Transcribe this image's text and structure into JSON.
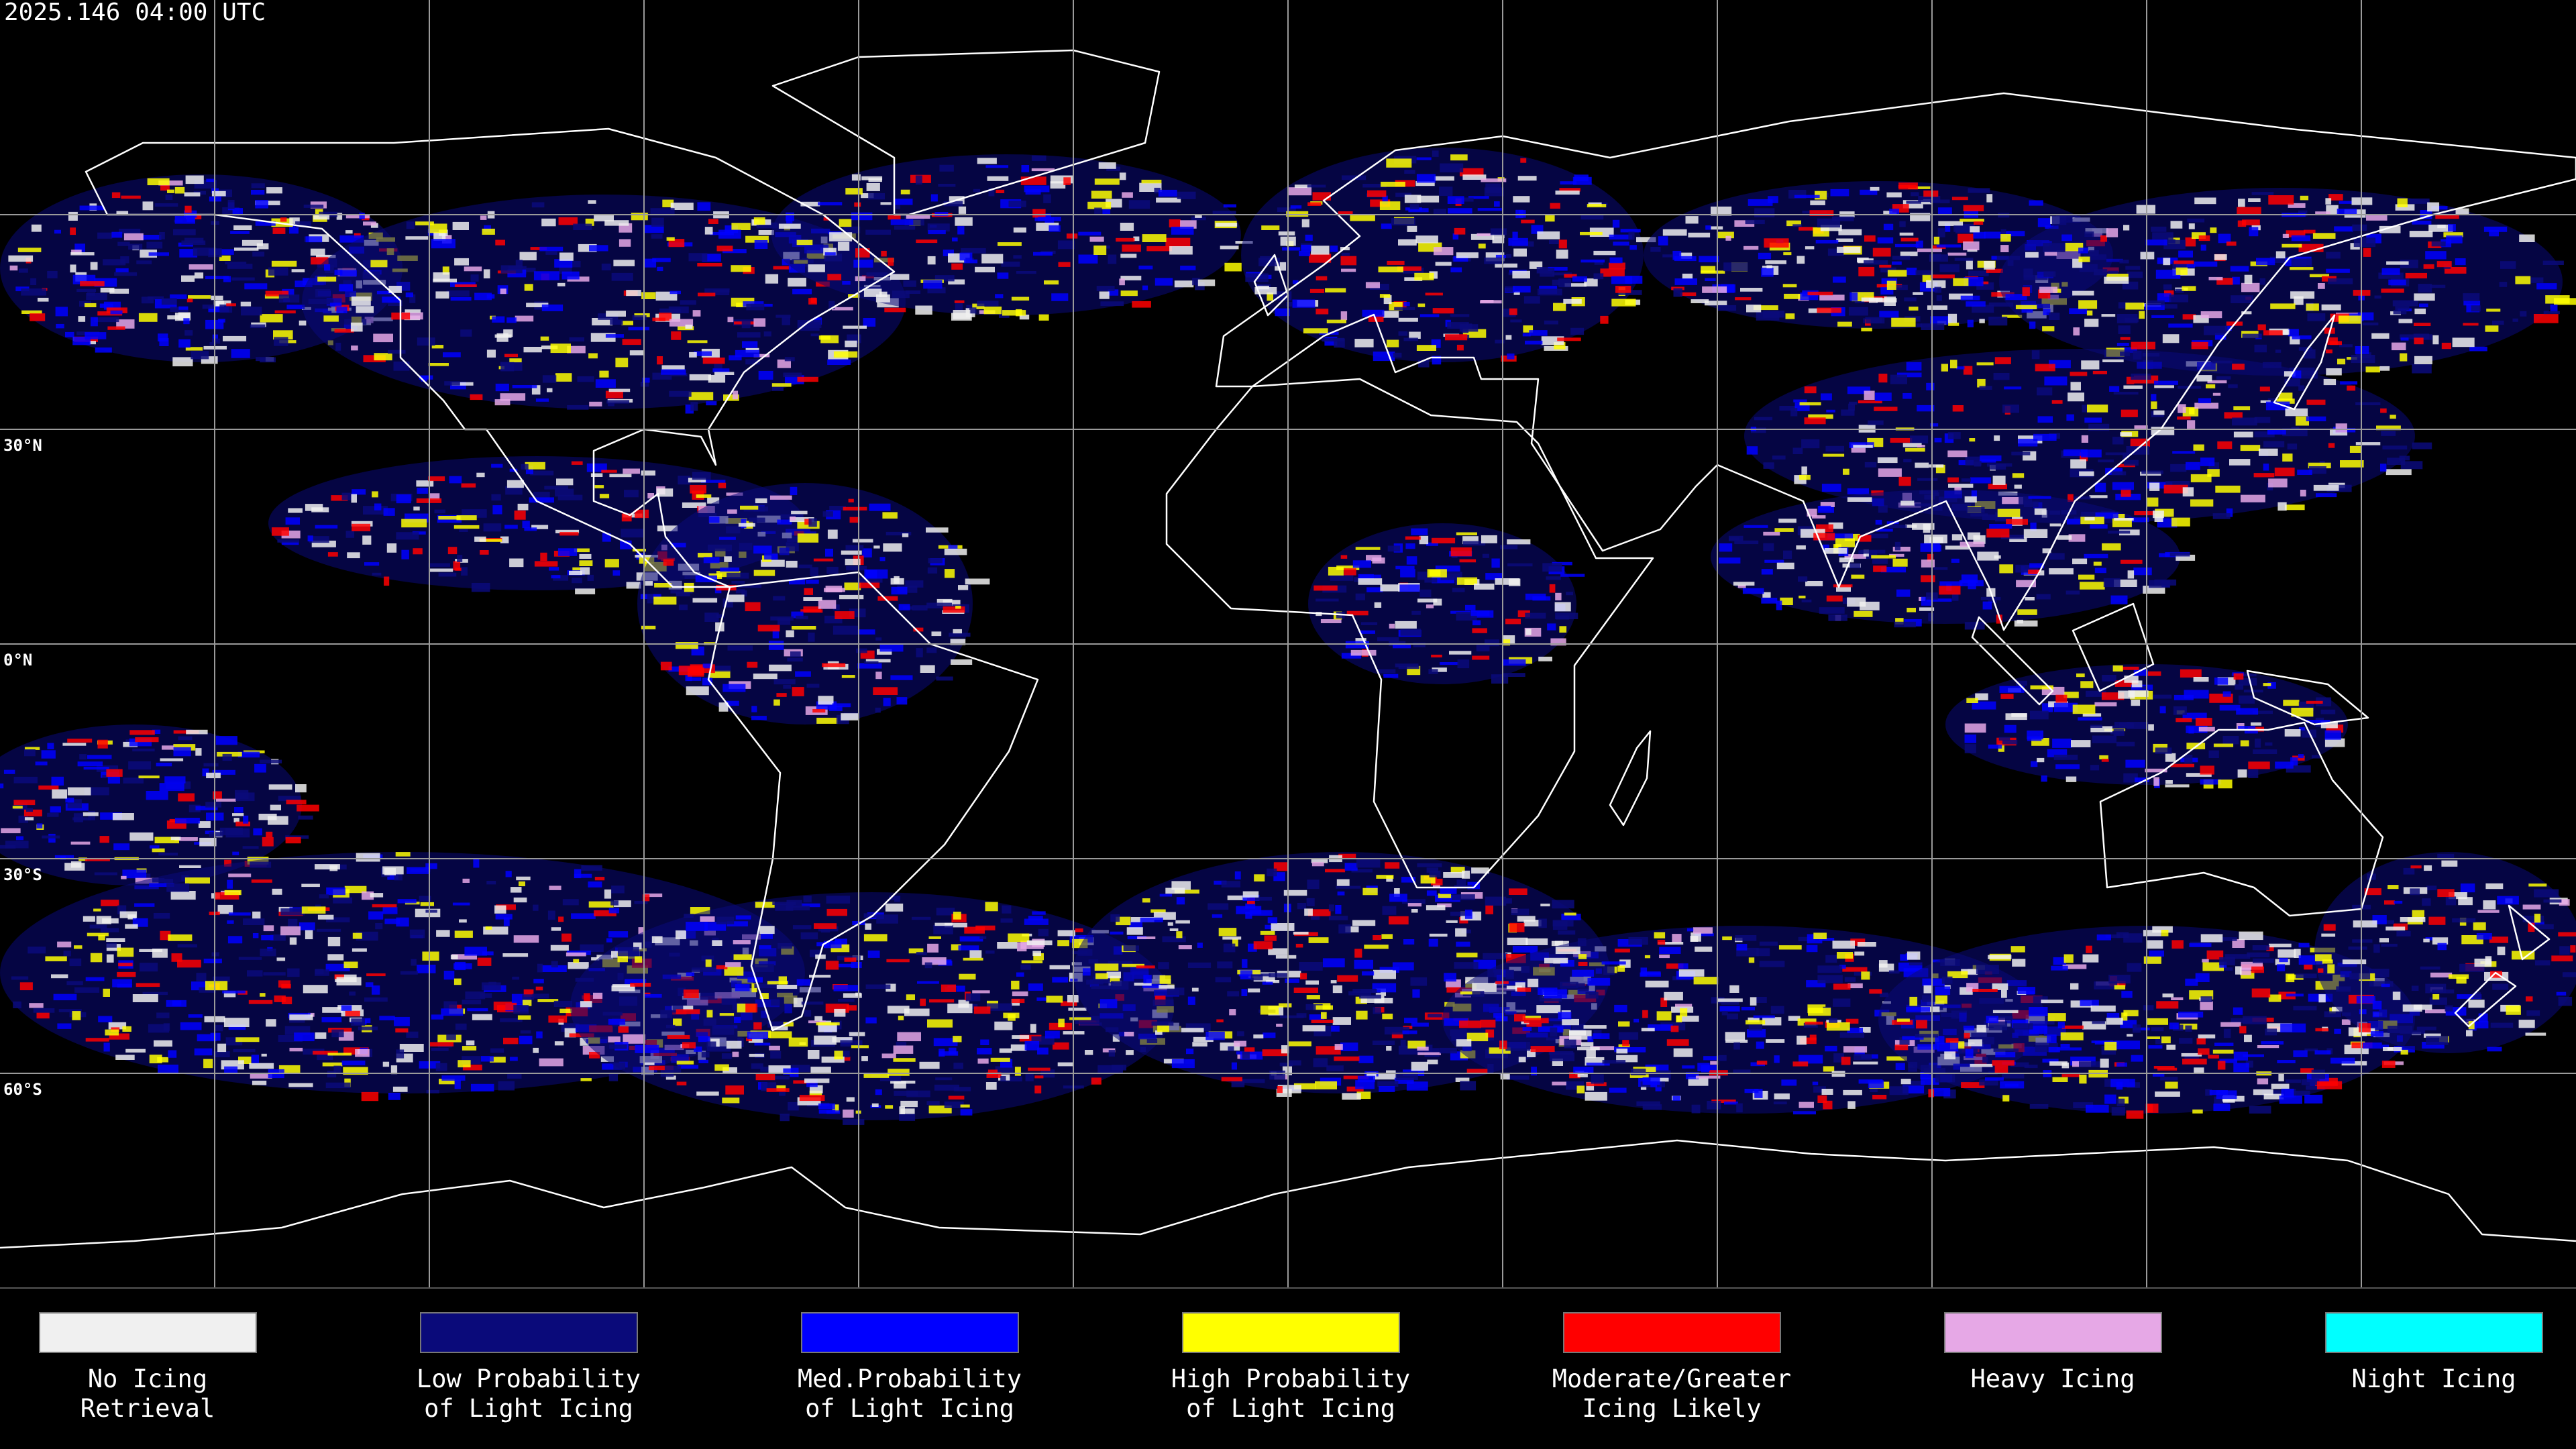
{
  "header": {
    "title": "2025.146 04:00 UTC"
  },
  "latitude_labels": [
    "30°N",
    "0°N",
    "30°S",
    "60°S"
  ],
  "legend": [
    {
      "lines": [
        "No Icing",
        "Retrieval"
      ],
      "color": "#f0f0f0"
    },
    {
      "lines": [
        "Low Probability",
        "of Light Icing"
      ],
      "color": "#0a0a7a"
    },
    {
      "lines": [
        "Med.Probability",
        "of Light Icing"
      ],
      "color": "#0000ff"
    },
    {
      "lines": [
        "High Probability",
        "of Light Icing"
      ],
      "color": "#ffff00"
    },
    {
      "lines": [
        "Moderate/Greater",
        "Icing Likely"
      ],
      "color": "#ff0000"
    },
    {
      "lines": [
        "Heavy Icing"
      ],
      "color": "#e6a8e6"
    },
    {
      "lines": [
        "Night Icing"
      ],
      "color": "#00ffff"
    }
  ]
}
